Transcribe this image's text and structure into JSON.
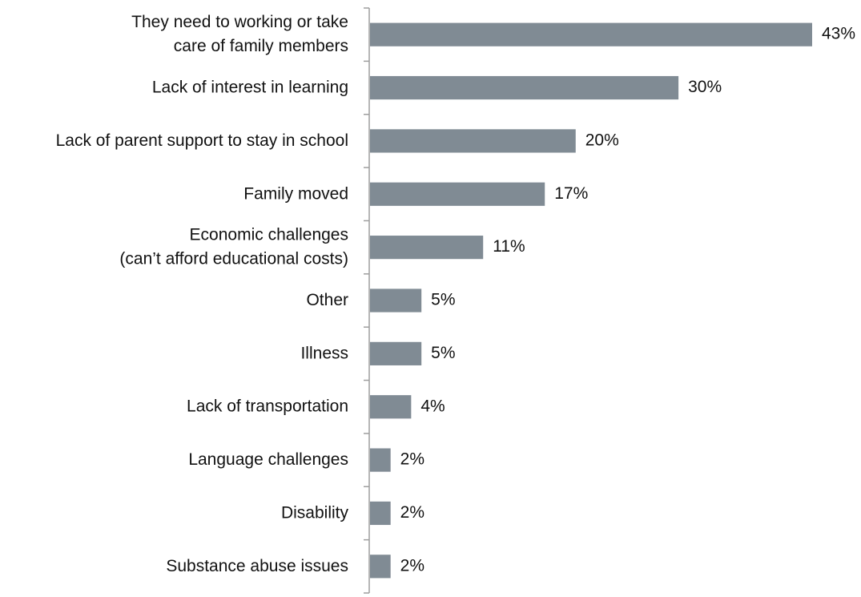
{
  "chart_data": {
    "type": "bar",
    "orientation": "horizontal",
    "categories": [
      [
        "They need to working or take",
        "care of family members"
      ],
      [
        "Lack of interest in learning"
      ],
      [
        "Lack of parent support to stay in school"
      ],
      [
        "Family moved"
      ],
      [
        "Economic challenges",
        "(can’t afford educational costs)"
      ],
      [
        "Other"
      ],
      [
        "Illness"
      ],
      [
        "Lack of transportation"
      ],
      [
        "Language challenges"
      ],
      [
        "Disability"
      ],
      [
        "Substance abuse issues"
      ]
    ],
    "values": [
      43,
      30,
      20,
      17,
      11,
      5,
      5,
      4,
      2,
      2,
      2
    ],
    "value_labels": [
      "43%",
      "30%",
      "20%",
      "17%",
      "11%",
      "5%",
      "5%",
      "4%",
      "2%",
      "2%",
      "2%"
    ],
    "unit": "%",
    "xlim": [
      0,
      43
    ],
    "grid": false,
    "legend": "none",
    "bar_color": "#808b94",
    "axis_color": "#9e9e9e"
  }
}
